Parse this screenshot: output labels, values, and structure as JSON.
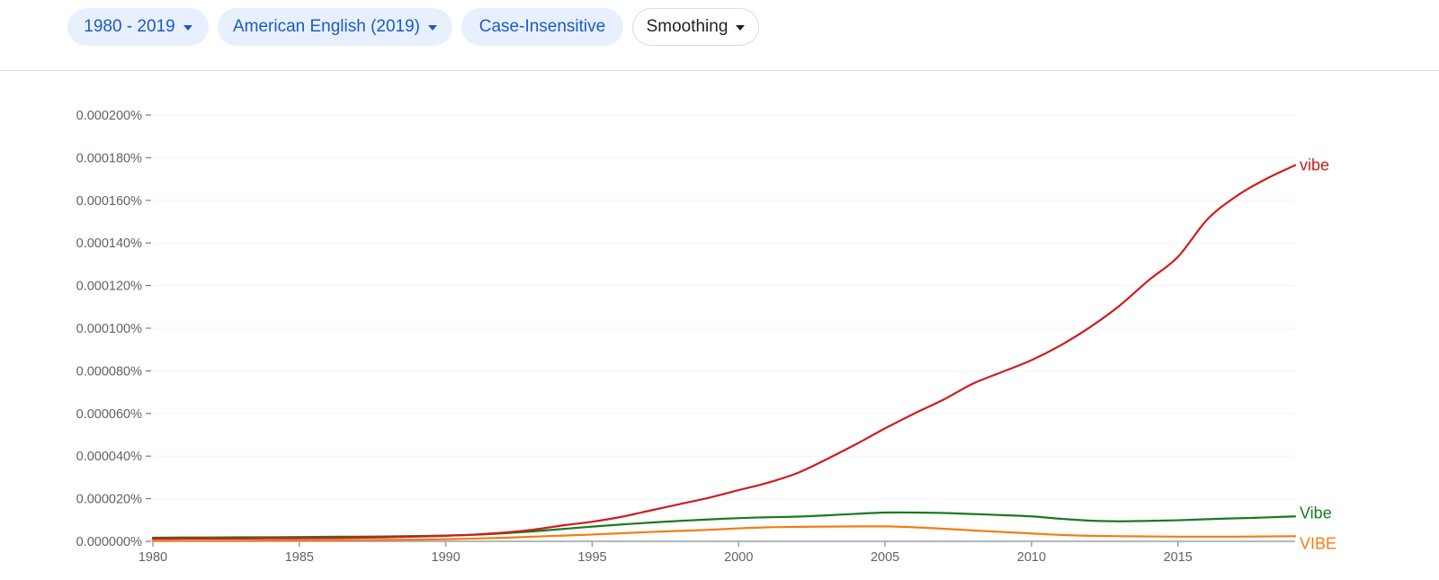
{
  "toolbar": {
    "range_label": "1980 - 2019",
    "corpus_label": "American English (2019)",
    "case_label": "Case-Insensitive",
    "smoothing_label": "Smoothing"
  },
  "chart_data": {
    "type": "line",
    "title": "",
    "xlabel": "",
    "ylabel": "",
    "xlim": [
      1980,
      2019
    ],
    "ylim": [
      0,
      0.0002
    ],
    "x_ticks": [
      1980,
      1985,
      1990,
      1995,
      2000,
      2005,
      2010,
      2015
    ],
    "y_ticks": [
      "0.000000%",
      "0.000020%",
      "0.000040%",
      "0.000060%",
      "0.000080%",
      "0.000100%",
      "0.000120%",
      "0.000140%",
      "0.000160%",
      "0.000180%",
      "0.000200%"
    ],
    "grid": true,
    "legend": "inline labels at line ends (right)",
    "x": [
      1980,
      1981,
      1982,
      1983,
      1984,
      1985,
      1986,
      1987,
      1988,
      1989,
      1990,
      1991,
      1992,
      1993,
      1994,
      1995,
      1996,
      1997,
      1998,
      1999,
      2000,
      2001,
      2002,
      2003,
      2004,
      2005,
      2006,
      2007,
      2008,
      2009,
      2010,
      2011,
      2012,
      2013,
      2014,
      2015,
      2016,
      2017,
      2018,
      2019
    ],
    "series": [
      {
        "name": "vibe",
        "color": "#d01c1f",
        "values": [
          1.2e-06,
          1.3e-06,
          1.3e-06,
          1.3e-06,
          1.4e-06,
          1.4e-06,
          1.5e-06,
          1.7e-06,
          1.9e-06,
          2.2e-06,
          2.6e-06,
          3.2e-06,
          4.1e-06,
          5.5e-06,
          7.5e-06,
          9.2e-06,
          1.15e-05,
          1.45e-05,
          1.75e-05,
          2.05e-05,
          2.4e-05,
          2.75e-05,
          3.2e-05,
          3.85e-05,
          4.55e-05,
          5.3e-05,
          6e-05,
          6.65e-05,
          7.4e-05,
          7.95e-05,
          8.5e-05,
          9.2e-05,
          0.0001005,
          0.0001105,
          0.0001225,
          0.0001335,
          0.000151,
          0.000162,
          0.00017,
          0.0001765
        ]
      },
      {
        "name": "Vibe",
        "color": "#1b7a1f",
        "values": [
          1.7e-06,
          1.8e-06,
          1.8e-06,
          1.9e-06,
          1.9e-06,
          2e-06,
          2.1e-06,
          2.2e-06,
          2.3e-06,
          2.5e-06,
          2.7e-06,
          3.1e-06,
          3.8e-06,
          4.7e-06,
          5.8e-06,
          6.9e-06,
          7.9e-06,
          8.8e-06,
          9.6e-06,
          1.03e-05,
          1.09e-05,
          1.13e-05,
          1.16e-05,
          1.22e-05,
          1.29e-05,
          1.35e-05,
          1.35e-05,
          1.33e-05,
          1.28e-05,
          1.23e-05,
          1.17e-05,
          1.06e-05,
          9.7e-06,
          9.4e-06,
          9.6e-06,
          9.9e-06,
          1.04e-05,
          1.08e-05,
          1.12e-05,
          1.17e-05
        ]
      },
      {
        "name": "VIBE",
        "color": "#f47c13",
        "values": [
          3e-07,
          3e-07,
          3e-07,
          3e-07,
          4e-07,
          4e-07,
          5e-07,
          6e-07,
          7e-07,
          8e-07,
          1e-06,
          1.3e-06,
          1.7e-06,
          2.2e-06,
          2.7e-06,
          3.2e-06,
          3.8e-06,
          4.4e-06,
          4.9e-06,
          5.4e-06,
          6.1e-06,
          6.6e-06,
          6.8e-06,
          6.9e-06,
          7e-06,
          7e-06,
          6.6e-06,
          5.9e-06,
          5.1e-06,
          4.4e-06,
          3.7e-06,
          3e-06,
          2.6e-06,
          2.4e-06,
          2.3e-06,
          2.2e-06,
          2.2e-06,
          2.2e-06,
          2.3e-06,
          2.4e-06
        ]
      }
    ]
  }
}
